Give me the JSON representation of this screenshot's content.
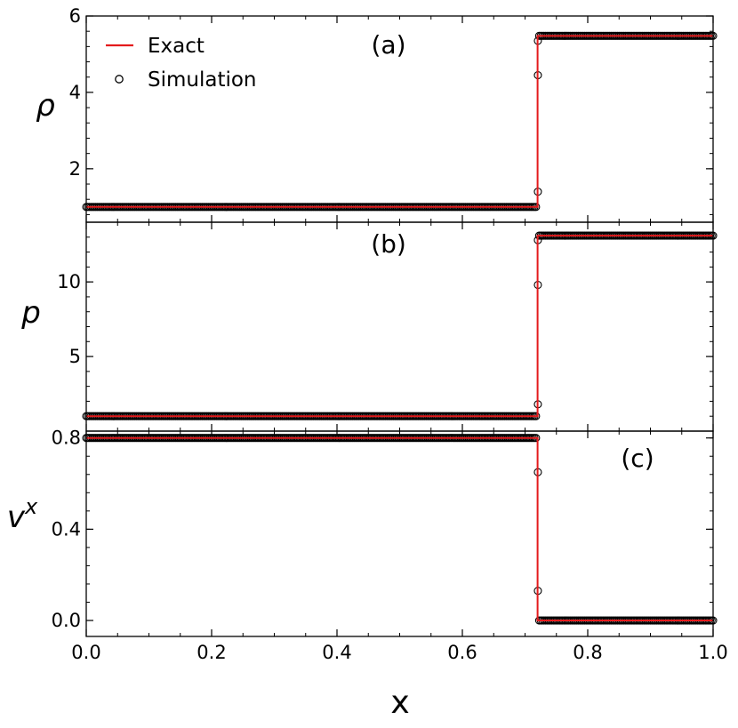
{
  "chart_data": {
    "type": "line",
    "xlabel": "x",
    "xlim": [
      0.0,
      1.0
    ],
    "xticks": [
      0.0,
      0.2,
      0.4,
      0.6,
      0.8,
      1.0
    ],
    "xtick_labels": [
      "0.0",
      "0.2",
      "0.4",
      "0.6",
      "0.8",
      "1.0"
    ],
    "legend": {
      "placement": "top-left",
      "entries": [
        {
          "label": "Exact",
          "style": "line",
          "color": "#e41a1c"
        },
        {
          "label": "Simulation",
          "style": "open-circle",
          "color": "#000000"
        }
      ]
    },
    "panels": [
      {
        "panel_label": "(a)",
        "ylabel": "ρ",
        "ylim": [
          0.6,
          6.0
        ],
        "yticks": [
          2,
          4,
          6
        ],
        "ytick_labels": [
          "2",
          "4",
          "6"
        ],
        "series": [
          {
            "name": "Exact",
            "x": [
              0.0,
              0.72,
              0.72,
              1.0
            ],
            "y": [
              1.0,
              1.0,
              5.48,
              5.48
            ]
          },
          {
            "name": "Simulation",
            "left_value": 1.0,
            "right_value": 5.48,
            "jump_x": 0.72,
            "transition_points": [
              [
                0.7205,
                1.4
              ],
              [
                0.7205,
                4.45
              ],
              [
                0.7205,
                5.35
              ]
            ]
          }
        ]
      },
      {
        "panel_label": "(b)",
        "ylabel": "p",
        "ylim": [
          0.0,
          14.0
        ],
        "yticks": [
          5,
          10
        ],
        "ytick_labels": [
          "5",
          "10"
        ],
        "series": [
          {
            "name": "Exact",
            "x": [
              0.0,
              0.72,
              0.72,
              1.0
            ],
            "y": [
              1.0,
              1.0,
              13.1,
              13.1
            ]
          },
          {
            "name": "Simulation",
            "left_value": 1.0,
            "right_value": 13.1,
            "jump_x": 0.72,
            "transition_points": [
              [
                0.7205,
                1.8
              ],
              [
                0.7205,
                9.8
              ],
              [
                0.7205,
                12.8
              ]
            ]
          }
        ]
      },
      {
        "panel_label": "(c)",
        "ylabel": "v",
        "ylabel_sup": "x",
        "ylim": [
          -0.07,
          0.83
        ],
        "yticks": [
          0.0,
          0.4,
          0.8
        ],
        "ytick_labels": [
          "0.0",
          "0.4",
          "0.8"
        ],
        "series": [
          {
            "name": "Exact",
            "x": [
              0.0,
              0.72,
              0.72,
              1.0
            ],
            "y": [
              0.8,
              0.8,
              0.0,
              0.0
            ]
          },
          {
            "name": "Simulation",
            "left_value": 0.8,
            "right_value": 0.0,
            "jump_x": 0.72,
            "transition_points": [
              [
                0.7205,
                0.65
              ],
              [
                0.7205,
                0.13
              ]
            ]
          }
        ]
      }
    ]
  },
  "colors": {
    "exact": "#e41a1c",
    "simulation": "#000000",
    "frame": "#000000"
  }
}
